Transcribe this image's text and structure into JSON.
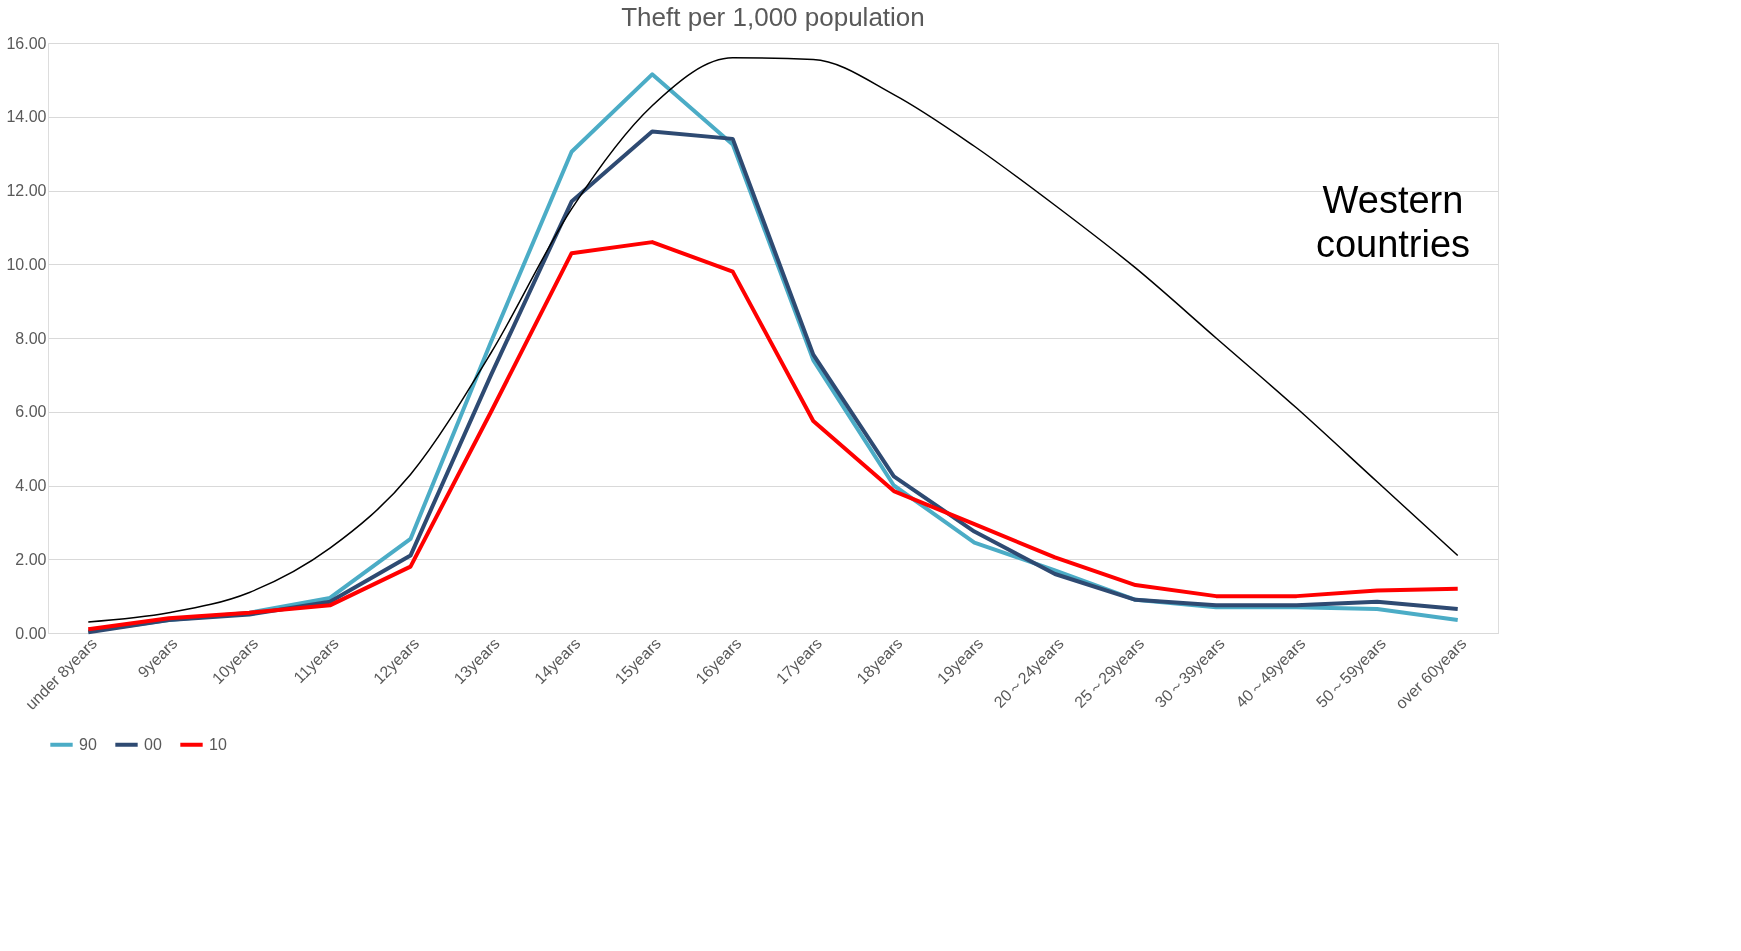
{
  "chart_data": {
    "type": "line",
    "title": "Theft per 1,000 population",
    "categories": [
      "under 8years",
      "9years",
      "10years",
      "11years",
      "12years",
      "13years",
      "14years",
      "15years",
      "16years",
      "17years",
      "18years",
      "19years",
      "20～24years",
      "25～29years",
      "30～39years",
      "40～49years",
      "50～59years",
      "over 60years"
    ],
    "series": [
      {
        "name": "90",
        "color": "#4bacc6",
        "values": [
          0.05,
          0.35,
          0.55,
          0.95,
          2.55,
          7.9,
          13.05,
          15.15,
          13.25,
          7.4,
          4.0,
          2.45,
          1.7,
          0.9,
          0.7,
          0.7,
          0.65,
          0.35
        ]
      },
      {
        "name": "00",
        "color": "#2e4a72",
        "values": [
          0.02,
          0.35,
          0.5,
          0.85,
          2.1,
          7.0,
          11.7,
          13.6,
          13.4,
          7.55,
          4.25,
          2.75,
          1.6,
          0.9,
          0.75,
          0.75,
          0.85,
          0.65
        ]
      },
      {
        "name": "10",
        "color": "#ff0000",
        "values": [
          0.1,
          0.4,
          0.55,
          0.75,
          1.8,
          6.0,
          10.3,
          10.6,
          9.8,
          5.75,
          3.85,
          2.95,
          2.05,
          1.3,
          1.0,
          1.0,
          1.15,
          1.2
        ]
      },
      {
        "color": "#000000",
        "values": [
          0.3,
          0.55,
          1.1,
          2.3,
          4.3,
          7.6,
          11.5,
          14.3,
          15.6,
          15.55,
          14.6,
          13.2,
          11.6,
          9.9,
          8.0,
          6.1,
          4.1,
          2.1
        ]
      }
    ],
    "ylim": [
      0,
      16
    ],
    "yticks": [
      {
        "value": 0,
        "label": "0.00"
      },
      {
        "value": 2,
        "label": "2.00"
      },
      {
        "value": 4,
        "label": "4.00"
      },
      {
        "value": 6,
        "label": "6.00"
      },
      {
        "value": 8,
        "label": "8.00"
      },
      {
        "value": 10,
        "label": "10.00"
      },
      {
        "value": 12,
        "label": "12.00"
      },
      {
        "value": 14,
        "label": "14.00"
      },
      {
        "value": 16,
        "label": "16.00"
      }
    ],
    "grid": "y",
    "legend": "bottom",
    "annotations": [
      "Western countries"
    ]
  }
}
